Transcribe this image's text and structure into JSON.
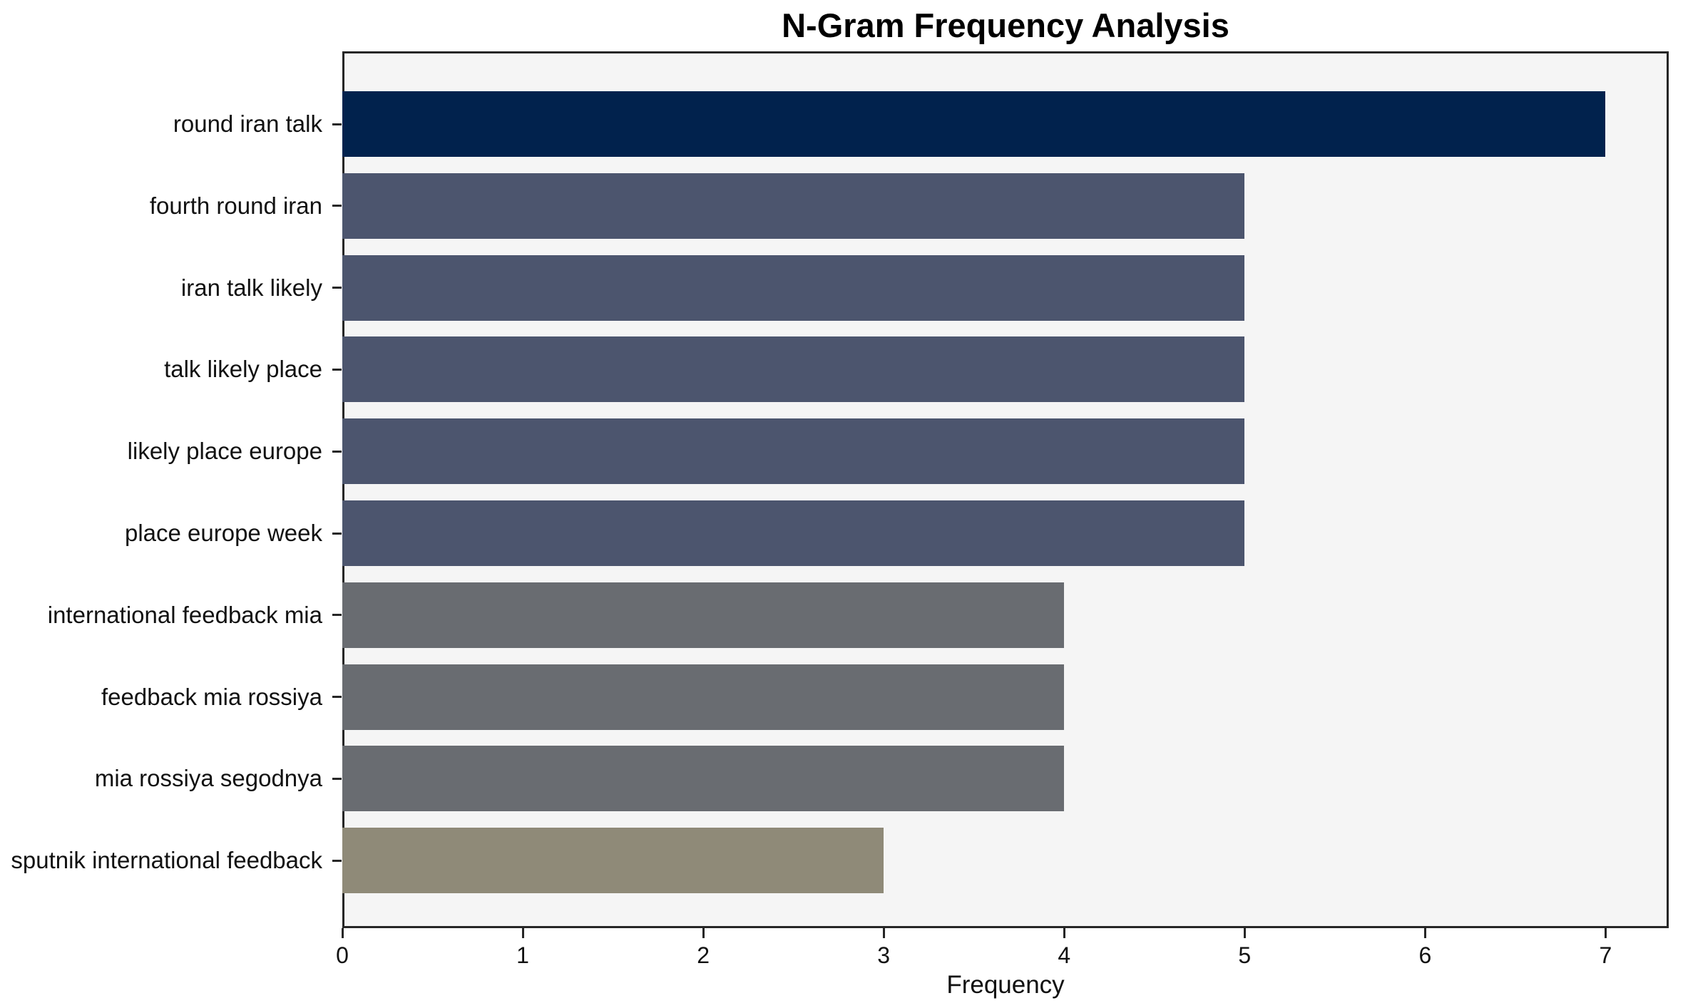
{
  "chart_data": {
    "type": "bar",
    "orientation": "horizontal",
    "title": "N-Gram Frequency Analysis",
    "xlabel": "Frequency",
    "ylabel": "",
    "categories": [
      "round iran talk",
      "fourth round iran",
      "iran talk likely",
      "talk likely place",
      "likely place europe",
      "place europe week",
      "international feedback mia",
      "feedback mia rossiya",
      "mia rossiya segodnya",
      "sputnik international feedback"
    ],
    "values": [
      7,
      5,
      5,
      5,
      5,
      5,
      4,
      4,
      4,
      3
    ],
    "bar_colors": [
      "#01224d",
      "#4c556e",
      "#4c556e",
      "#4c556e",
      "#4c556e",
      "#4c556e",
      "#696c71",
      "#696c71",
      "#696c71",
      "#8f8a78"
    ],
    "xlim": [
      0,
      7.35
    ],
    "xticks": [
      0,
      1,
      2,
      3,
      4,
      5,
      6,
      7
    ],
    "grid": false,
    "legend": null,
    "plot_background": "#f5f5f5",
    "figure_background": "#ffffff",
    "spine_color": "#262626"
  }
}
